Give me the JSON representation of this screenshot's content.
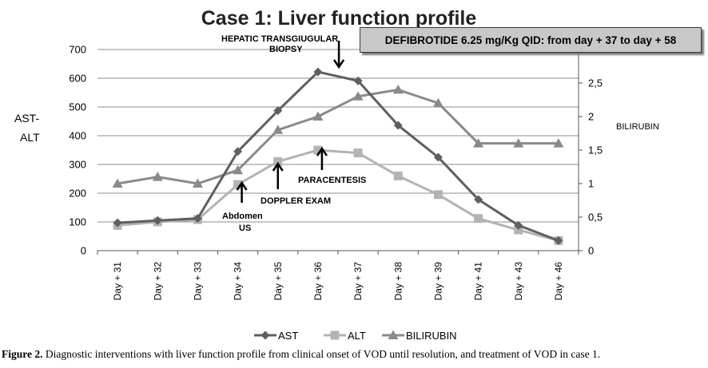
{
  "chart_data": {
    "type": "line",
    "title": "Case 1: Liver function profile",
    "categories": [
      "Day + 31",
      "Day + 32",
      "Day + 33",
      "Day + 34",
      "Day + 35",
      "Day + 36",
      "Day + 37",
      "Day + 38",
      "Day + 39",
      "Day + 41",
      "Day + 43",
      "Day + 46"
    ],
    "y_left": {
      "label_line1": "AST-",
      "label_line2": "ALT",
      "range": [
        0,
        700
      ],
      "ticks": [
        0,
        100,
        200,
        300,
        400,
        500,
        600,
        700
      ]
    },
    "y_right": {
      "label": "BILIRUBIN",
      "range": [
        0,
        3
      ],
      "ticks": [
        "0",
        "0,5",
        "1",
        "1,5",
        "2",
        "2,5"
      ],
      "tick_values": [
        0,
        0.5,
        1,
        1.5,
        2,
        2.5
      ]
    },
    "series": [
      {
        "name": "AST",
        "axis": "left",
        "color": "#5f5f5f",
        "marker": "diamond",
        "values": [
          97,
          105,
          112,
          345,
          487,
          622,
          591,
          436,
          325,
          178,
          88,
          35
        ]
      },
      {
        "name": "ALT",
        "axis": "left",
        "color": "#b3b3b3",
        "marker": "square",
        "values": [
          88,
          100,
          108,
          230,
          310,
          350,
          340,
          260,
          195,
          112,
          72,
          35
        ]
      },
      {
        "name": "BILIRUBIN",
        "axis": "right",
        "color": "#8a8a8a",
        "marker": "triangle",
        "values": [
          1.0,
          1.1,
          1.0,
          1.2,
          1.8,
          2.0,
          2.3,
          2.4,
          2.2,
          1.6,
          1.6,
          1.6
        ]
      }
    ],
    "grid": "horizontal",
    "legend_position": "bottom"
  },
  "annotations": {
    "biopsy_line1": "HEPATIC TRANSGIUGULAR",
    "biopsy_line2": "BIOPSY",
    "paracentesis": "PARACENTESIS",
    "doppler": "DOPPLER EXAM",
    "abdomen_line1": "Abdomen",
    "abdomen_line2": "US"
  },
  "drug_box": "DEFIBROTIDE 6.25 mg/Kg  QID: from day + 37 to day + 58",
  "caption": {
    "label": "Figure 2.",
    "text": " Diagnostic interventions with  liver function profile from clinical  onset of VOD until resolution, and treatment of VOD in case 1."
  }
}
